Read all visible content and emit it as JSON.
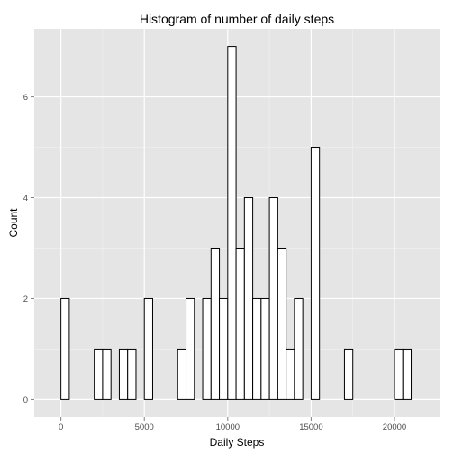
{
  "chart_data": {
    "type": "bar",
    "title": "Histogram of number of daily steps",
    "xlabel": "Daily Steps",
    "ylabel": "Count",
    "xlim": [
      -1600,
      22700
    ],
    "ylim": [
      -0.35,
      7.35
    ],
    "x_ticks": [
      0,
      5000,
      10000,
      15000,
      20000
    ],
    "x_tick_labels": [
      "0",
      "5000",
      "10000",
      "15000",
      "20000"
    ],
    "y_ticks": [
      0,
      2,
      4,
      6
    ],
    "y_tick_labels": [
      "0",
      "2",
      "4",
      "6"
    ],
    "bin_width": 500,
    "bin_start": -500,
    "counts": [
      0,
      2,
      0,
      0,
      0,
      1,
      1,
      0,
      1,
      1,
      0,
      2,
      0,
      0,
      0,
      1,
      2,
      0,
      2,
      3,
      2,
      7,
      3,
      4,
      2,
      2,
      4,
      3,
      1,
      2,
      0,
      5,
      0,
      0,
      0,
      1,
      0,
      0,
      0,
      0,
      0,
      1,
      1,
      0,
      0
    ],
    "grid": true,
    "colors": {
      "panel_background": "#e5e5e5",
      "grid_major": "#ffffff",
      "grid_minor": "#f2f2f2",
      "bar_fill": "#ffffff",
      "bar_outline": "#000000"
    }
  }
}
